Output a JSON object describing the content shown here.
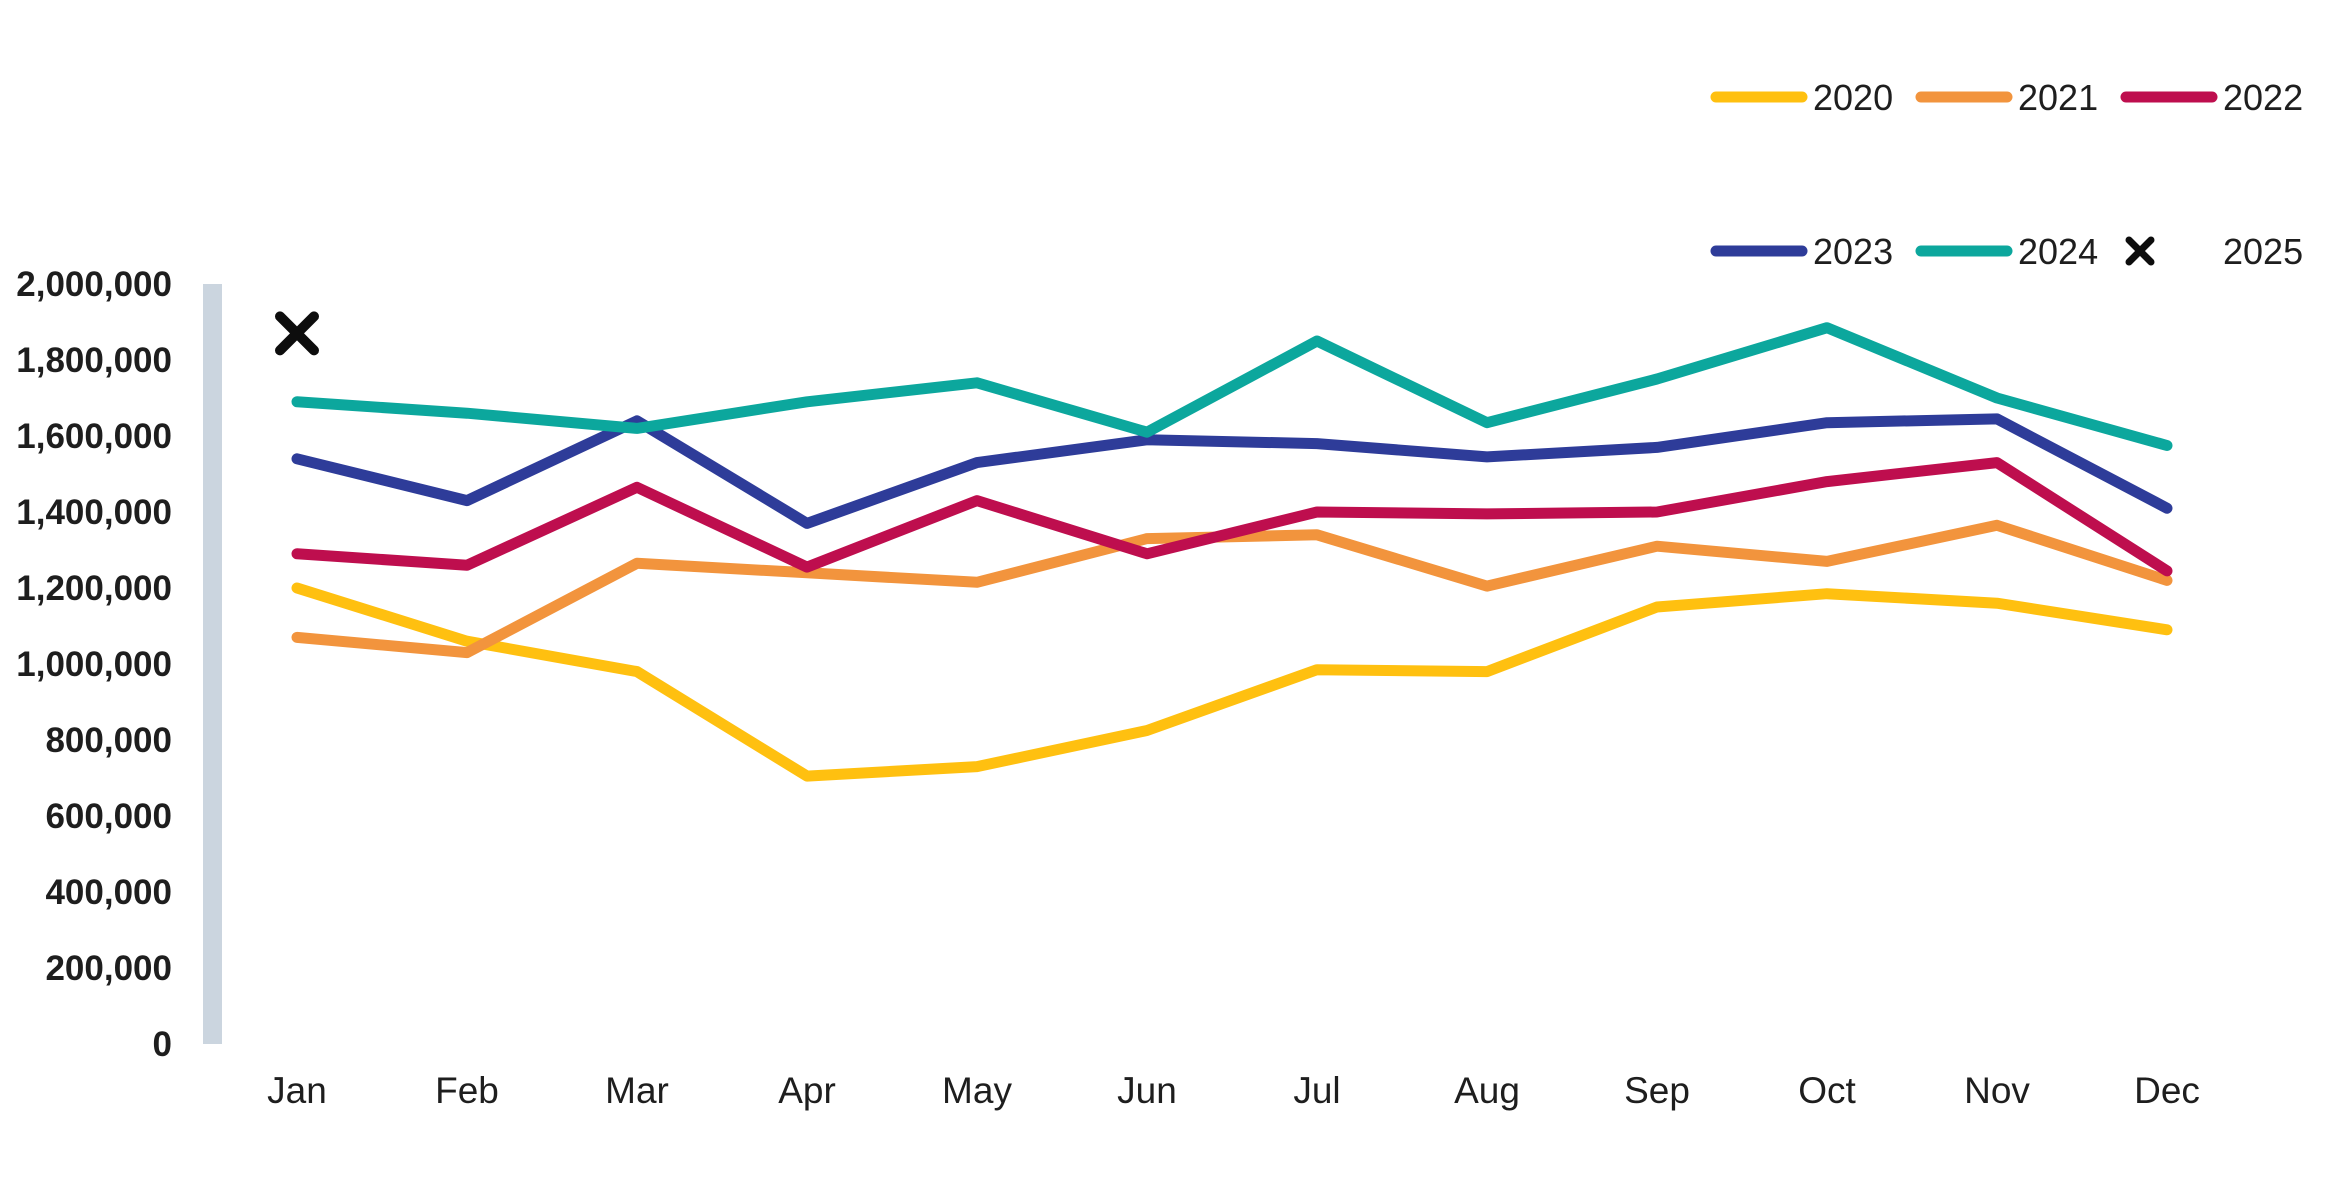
{
  "chart_data": {
    "type": "line",
    "title": "",
    "xlabel": "",
    "ylabel": "",
    "categories": [
      "Jan",
      "Feb",
      "Mar",
      "Apr",
      "May",
      "Jun",
      "Jul",
      "Aug",
      "Sep",
      "Oct",
      "Nov",
      "Dec"
    ],
    "ylim": [
      0,
      2000000
    ],
    "grid": false,
    "legend_position": "top-right",
    "yticks": [
      {
        "value": 0,
        "label": "0"
      },
      {
        "value": 200000,
        "label": "200,000"
      },
      {
        "value": 400000,
        "label": "400,000"
      },
      {
        "value": 600000,
        "label": "600,000"
      },
      {
        "value": 800000,
        "label": "800,000"
      },
      {
        "value": 1000000,
        "label": "1,000,000"
      },
      {
        "value": 1200000,
        "label": "1,200,000"
      },
      {
        "value": 1400000,
        "label": "1,400,000"
      },
      {
        "value": 1600000,
        "label": "1,600,000"
      },
      {
        "value": 1800000,
        "label": "1,800,000"
      },
      {
        "value": 2000000,
        "label": "2,000,000"
      }
    ],
    "series": [
      {
        "name": "2020",
        "color": "#FFC010",
        "style": "line",
        "values": [
          1200000,
          1060000,
          980000,
          705000,
          730000,
          825000,
          985000,
          980000,
          1150000,
          1185000,
          1160000,
          1090000
        ]
      },
      {
        "name": "2021",
        "color": "#F2943D",
        "style": "line",
        "values": [
          1070000,
          1030000,
          1265000,
          1240000,
          1215000,
          1330000,
          1340000,
          1205000,
          1310000,
          1270000,
          1365000,
          1220000
        ]
      },
      {
        "name": "2022",
        "color": "#BE0E4E",
        "style": "line",
        "values": [
          1290000,
          1260000,
          1465000,
          1255000,
          1430000,
          1290000,
          1400000,
          1395000,
          1400000,
          1480000,
          1530000,
          1245000
        ]
      },
      {
        "name": "2023",
        "color": "#2E3C99",
        "style": "line",
        "values": [
          1540000,
          1430000,
          1640000,
          1370000,
          1530000,
          1590000,
          1580000,
          1545000,
          1570000,
          1635000,
          1645000,
          1410000
        ]
      },
      {
        "name": "2024",
        "color": "#0CA79D",
        "style": "line",
        "values": [
          1690000,
          1660000,
          1620000,
          1690000,
          1740000,
          1610000,
          1850000,
          1635000,
          1750000,
          1885000,
          1700000,
          1575000
        ]
      },
      {
        "name": "2025",
        "color": "#0D0D0D",
        "style": "x-marker",
        "values": [
          1870000,
          null,
          null,
          null,
          null,
          null,
          null,
          null,
          null,
          null,
          null,
          null
        ]
      }
    ]
  },
  "legend": {
    "rows": [
      [
        {
          "series": "2020"
        },
        {
          "series": "2021"
        },
        {
          "series": "2022"
        }
      ],
      [
        {
          "series": "2023"
        },
        {
          "series": "2024"
        },
        {
          "series": "2025"
        }
      ]
    ]
  },
  "axis_bar_color": "#CBD5DF",
  "text_color": "#1E1E1E"
}
